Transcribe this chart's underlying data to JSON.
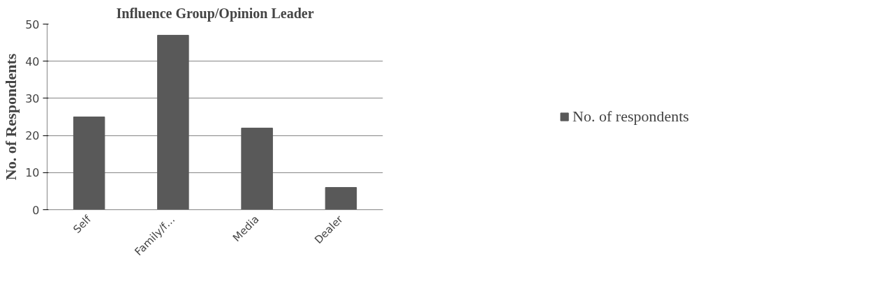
{
  "chart_data": {
    "type": "bar",
    "title": "Influence Group/Opinion Leader",
    "ylabel": "No. of Respondents",
    "categories": [
      "Self",
      "Family/f…",
      "Media",
      "Dealer"
    ],
    "series": [
      {
        "name": "No. of respondents",
        "color": "#595959",
        "values": [
          25,
          47,
          22,
          6
        ]
      }
    ],
    "ylim": [
      0,
      50
    ],
    "yticks": [
      0,
      10,
      20,
      30,
      40,
      50
    ],
    "grid": "y",
    "legend": "right"
  }
}
